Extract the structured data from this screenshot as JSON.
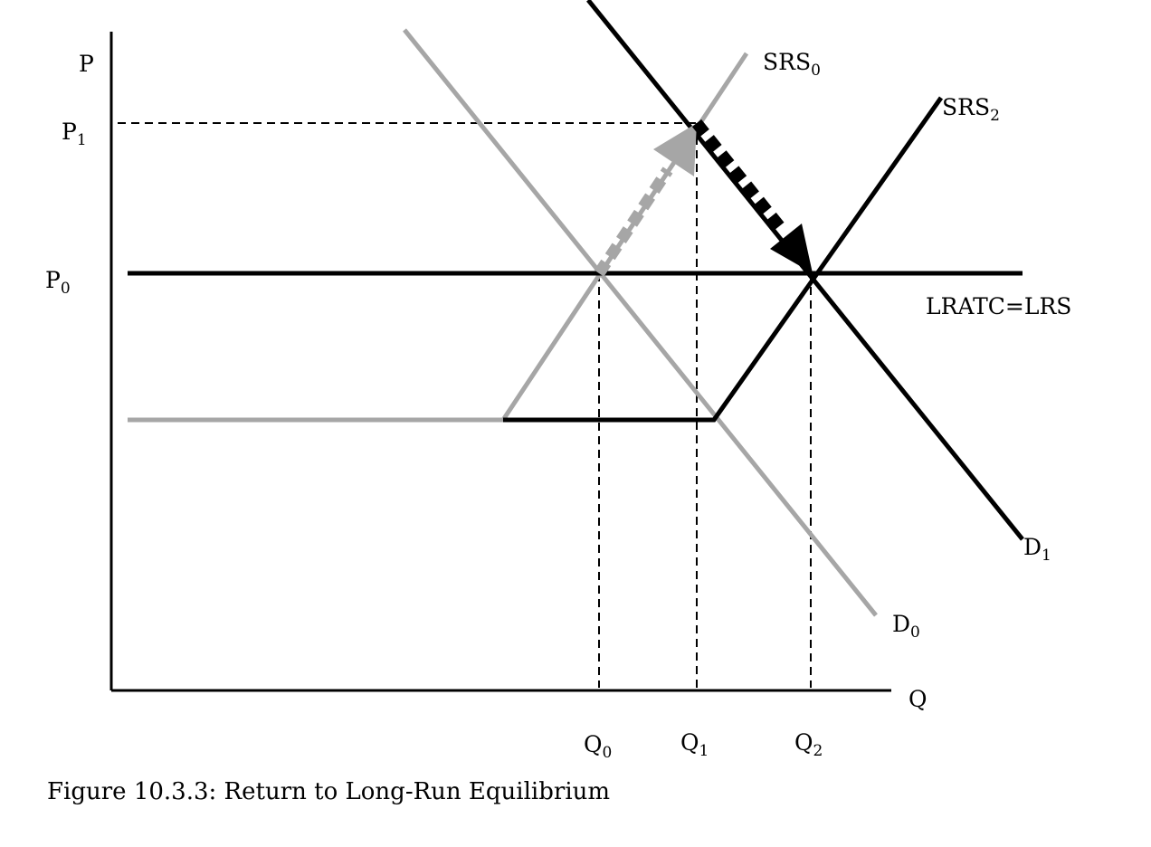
{
  "colors": {
    "original_curves": "#a6a6a6",
    "new_curves": "#000000",
    "guides": "#000000"
  },
  "axes": {
    "y_label": "P",
    "x_label": "Q"
  },
  "price_labels": {
    "p1": {
      "main": "P",
      "sub": "1"
    },
    "p0": {
      "main": "P",
      "sub": "0"
    }
  },
  "quantity_labels": {
    "q0": {
      "main": "Q",
      "sub": "0"
    },
    "q1": {
      "main": "Q",
      "sub": "1"
    },
    "q2": {
      "main": "Q",
      "sub": "2"
    }
  },
  "curve_labels": {
    "srs0": {
      "main": "SRS",
      "sub": "0"
    },
    "srs2": {
      "main": "SRS",
      "sub": "2"
    },
    "lratc": "LRATC=LRS",
    "d1": {
      "main": "D",
      "sub": "1"
    },
    "d0": {
      "main": "D",
      "sub": "0"
    }
  },
  "caption": "Figure 10.3.3: Return to Long-Run Equilibrium"
}
